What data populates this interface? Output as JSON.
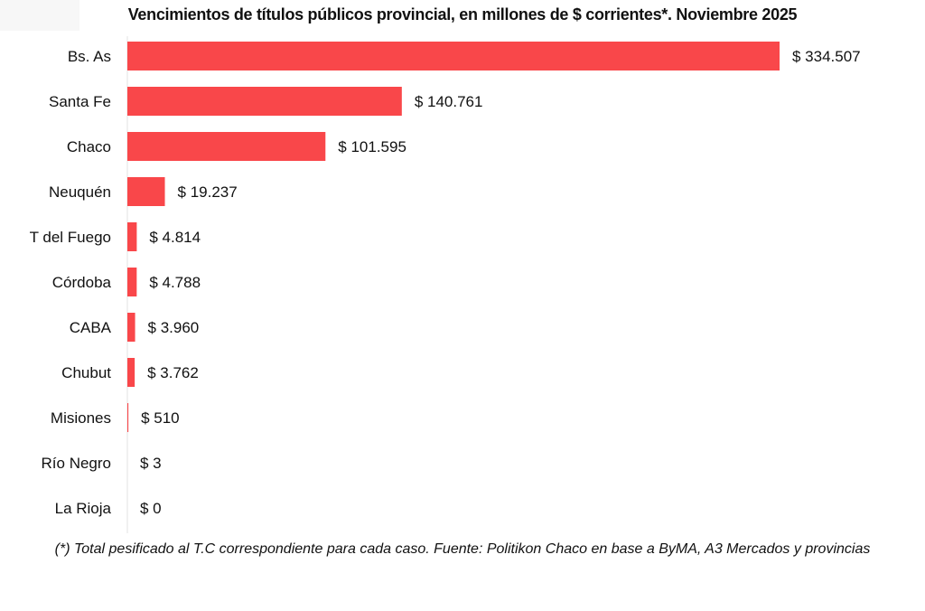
{
  "chart_data": {
    "type": "bar",
    "orientation": "horizontal",
    "title": "Vencimientos de títulos públicos provincial, en millones de $ corrientes*. Noviembre 2025",
    "categories": [
      "Bs. As",
      "Santa Fe",
      "Chaco",
      "Neuquén",
      "T del Fuego",
      "Córdoba",
      "CABA",
      "Chubut",
      "Misiones",
      "Río Negro",
      "La Rioja"
    ],
    "values": [
      334507,
      140761,
      101595,
      19237,
      4814,
      4788,
      3960,
      3762,
      510,
      3,
      0
    ],
    "data_labels": [
      "$ 334.507",
      "$ 140.761",
      "$ 101.595",
      "$ 19.237",
      "$ 4.814",
      "$ 4.788",
      "$ 3.960",
      "$ 3.762",
      "$ 510",
      "$ 3",
      "$ 0"
    ],
    "xlabel": "",
    "ylabel": "",
    "grid": false,
    "bar_color": "#f9474a"
  },
  "footnote": "(*) Total pesificado al T.C correspondiente para cada caso. Fuente: Politikon Chaco en base a ByMA, A3 Mercados y provincias"
}
